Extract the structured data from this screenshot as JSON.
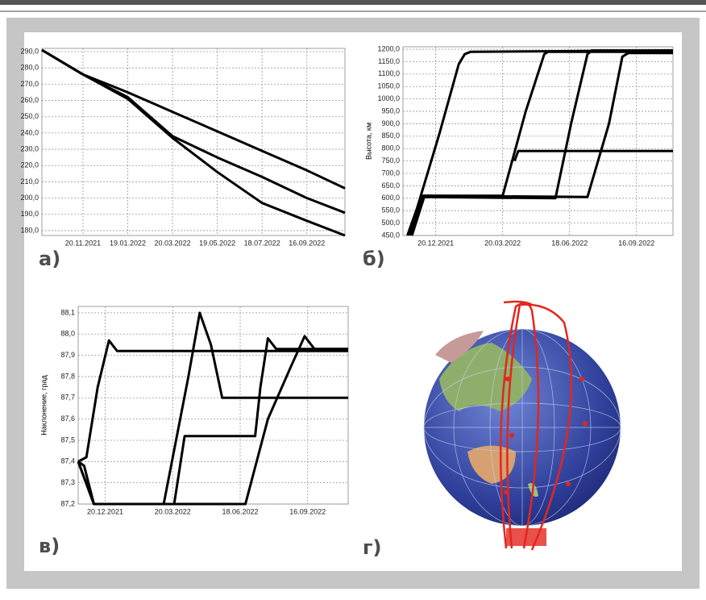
{
  "chart_data": [
    {
      "type": "line",
      "panel_label": "а)",
      "grid": true,
      "xlim": [
        "2021-09-26",
        "2022-11-06"
      ],
      "ylim": [
        177,
        292
      ],
      "xticks": [
        {
          "value": "2021-11-20",
          "label": "20.11.2021"
        },
        {
          "value": "2022-01-19",
          "label": "19.01.2022"
        },
        {
          "value": "2022-03-20",
          "label": "20.03.2022"
        },
        {
          "value": "2022-05-19",
          "label": "19.05.2022"
        },
        {
          "value": "2022-07-18",
          "label": "18.07.2022"
        },
        {
          "value": "2022-09-16",
          "label": "16.09.2022"
        }
      ],
      "yticks": [
        {
          "value": 180,
          "label": "180,0"
        },
        {
          "value": 190,
          "label": "190,0"
        },
        {
          "value": 200,
          "label": "200,0"
        },
        {
          "value": 210,
          "label": "210,0"
        },
        {
          "value": 220,
          "label": "220,0"
        },
        {
          "value": 230,
          "label": "230,0"
        },
        {
          "value": 240,
          "label": "240,0"
        },
        {
          "value": 250,
          "label": "250,0"
        },
        {
          "value": 260,
          "label": "260,0"
        },
        {
          "value": 270,
          "label": "270,0"
        },
        {
          "value": 280,
          "label": "280,0"
        },
        {
          "value": 290,
          "label": "290,0"
        }
      ],
      "series": [
        {
          "color": "#000000",
          "x": [
            "2021-09-26",
            "2021-11-20",
            "2022-01-19",
            "2022-03-20",
            "2022-05-19",
            "2022-07-18",
            "2022-09-16",
            "2022-11-06"
          ],
          "values": [
            291,
            276,
            265,
            253,
            241,
            229,
            217,
            206
          ]
        },
        {
          "color": "#000000",
          "x": [
            "2021-09-26",
            "2021-11-20",
            "2022-01-19",
            "2022-03-20",
            "2022-05-19",
            "2022-07-18",
            "2022-09-16",
            "2022-11-06"
          ],
          "values": [
            291,
            276,
            262,
            238,
            225,
            213,
            200,
            191
          ]
        },
        {
          "color": "#000000",
          "x": [
            "2021-09-26",
            "2021-11-20",
            "2022-01-19",
            "2022-03-20",
            "2022-05-19",
            "2022-07-18",
            "2022-09-16",
            "2022-11-06"
          ],
          "values": [
            291,
            276,
            261,
            237,
            216,
            197,
            186,
            177
          ]
        }
      ]
    },
    {
      "type": "line",
      "panel_label": "б)",
      "ylabel": "Высота, км",
      "grid": true,
      "xlim": [
        "2021-11-06",
        "2022-11-04"
      ],
      "ylim": [
        450,
        1210
      ],
      "xticks": [
        {
          "value": "2021-12-20",
          "label": "20.12.2021"
        },
        {
          "value": "2022-03-20",
          "label": "20.03.2022"
        },
        {
          "value": "2022-06-18",
          "label": "18.06.2022"
        },
        {
          "value": "2022-09-16",
          "label": "16.09.2022"
        }
      ],
      "yticks": [
        {
          "value": 450,
          "label": "450,0"
        },
        {
          "value": 500,
          "label": "500,0"
        },
        {
          "value": 550,
          "label": "550,0"
        },
        {
          "value": 600,
          "label": "600,0"
        },
        {
          "value": 650,
          "label": "650,0"
        },
        {
          "value": 700,
          "label": "700,0"
        },
        {
          "value": 750,
          "label": "750,0"
        },
        {
          "value": 800,
          "label": "800,0"
        },
        {
          "value": 850,
          "label": "850,0"
        },
        {
          "value": 900,
          "label": "900,0"
        },
        {
          "value": 950,
          "label": "950,0"
        },
        {
          "value": 1000,
          "label": "1000,0"
        },
        {
          "value": 1050,
          "label": "1050,0"
        },
        {
          "value": 1100,
          "label": "1100,0"
        },
        {
          "value": 1150,
          "label": "1150,0"
        },
        {
          "value": 1200,
          "label": "1200,0"
        }
      ],
      "series": [
        {
          "color": "#000000",
          "x": [
            "2021-11-12",
            "2021-11-25",
            "2021-12-25",
            "2022-01-20",
            "2022-01-28",
            "2022-02-05",
            "2022-11-04"
          ],
          "values": [
            450,
            560,
            860,
            1140,
            1180,
            1190,
            1195
          ]
        },
        {
          "color": "#000000",
          "x": [
            "2021-11-15",
            "2021-12-01",
            "2022-03-20",
            "2022-04-20",
            "2022-05-15",
            "2022-05-20",
            "2022-11-04"
          ],
          "values": [
            450,
            610,
            610,
            950,
            1180,
            1190,
            1190
          ]
        },
        {
          "color": "#000000",
          "x": [
            "2021-11-18",
            "2021-12-03",
            "2022-05-30",
            "2022-06-20",
            "2022-07-12",
            "2022-07-18",
            "2022-11-04"
          ],
          "values": [
            450,
            605,
            600,
            900,
            1180,
            1195,
            1195
          ]
        },
        {
          "color": "#000000",
          "x": [
            "2021-11-18",
            "2021-12-05",
            "2022-07-12",
            "2022-08-10",
            "2022-08-28",
            "2022-09-05",
            "2022-11-04"
          ],
          "values": [
            450,
            610,
            605,
            900,
            1170,
            1185,
            1185
          ]
        },
        {
          "color": "#000000",
          "x": [
            "2022-04-05",
            "2022-04-10",
            "2022-11-04"
          ],
          "values": [
            750,
            790,
            790
          ]
        }
      ]
    },
    {
      "type": "line",
      "panel_label": "в)",
      "ylabel": "Наклонение, град",
      "grid": true,
      "xlim": [
        "2021-11-14",
        "2022-11-09"
      ],
      "ylim": [
        87.2,
        88.13
      ],
      "xticks": [
        {
          "value": "2021-12-20",
          "label": "20.12.2021"
        },
        {
          "value": "2022-03-20",
          "label": "20.03.2022"
        },
        {
          "value": "2022-06-18",
          "label": "18.06.2022"
        },
        {
          "value": "2022-09-16",
          "label": "16.09.2022"
        }
      ],
      "yticks": [
        {
          "value": 87.2,
          "label": "87,2"
        },
        {
          "value": 87.3,
          "label": "87,3"
        },
        {
          "value": 87.4,
          "label": "87,4"
        },
        {
          "value": 87.5,
          "label": "87,5"
        },
        {
          "value": 87.6,
          "label": "87,6"
        },
        {
          "value": 87.7,
          "label": "87,7"
        },
        {
          "value": 87.8,
          "label": "87,8"
        },
        {
          "value": 87.9,
          "label": "87,9"
        },
        {
          "value": 88.0,
          "label": "88,0"
        },
        {
          "value": 88.1,
          "label": "88,1"
        }
      ],
      "series": [
        {
          "color": "#000000",
          "x": [
            "2021-11-14",
            "2021-11-25",
            "2021-12-10",
            "2021-12-25",
            "2022-01-05",
            "2022-11-09"
          ],
          "values": [
            87.4,
            87.42,
            87.75,
            87.97,
            87.92,
            87.92
          ]
        },
        {
          "color": "#000000",
          "x": [
            "2021-11-14",
            "2021-11-22",
            "2021-12-05",
            "2022-03-08",
            "2022-04-10",
            "2022-04-25",
            "2022-05-10",
            "2022-05-25",
            "2022-11-09"
          ],
          "values": [
            87.4,
            87.38,
            87.2,
            87.2,
            87.8,
            88.1,
            87.95,
            87.7,
            87.7
          ]
        },
        {
          "color": "#000000",
          "x": [
            "2021-11-14",
            "2021-12-05",
            "2022-03-22",
            "2022-04-05",
            "2022-07-08",
            "2022-07-15",
            "2022-07-25",
            "2022-08-05",
            "2022-11-09"
          ],
          "values": [
            87.4,
            87.2,
            87.2,
            87.52,
            87.52,
            87.75,
            87.98,
            87.93,
            87.93
          ]
        },
        {
          "color": "#000000",
          "x": [
            "2021-11-14",
            "2021-12-05",
            "2022-06-25",
            "2022-07-25",
            "2022-08-25",
            "2022-09-12",
            "2022-09-25",
            "2022-11-09"
          ],
          "values": [
            87.4,
            87.2,
            87.2,
            87.6,
            87.85,
            87.99,
            87.93,
            87.93
          ]
        }
      ]
    }
  ],
  "globe": {
    "panel_label": "г)"
  }
}
